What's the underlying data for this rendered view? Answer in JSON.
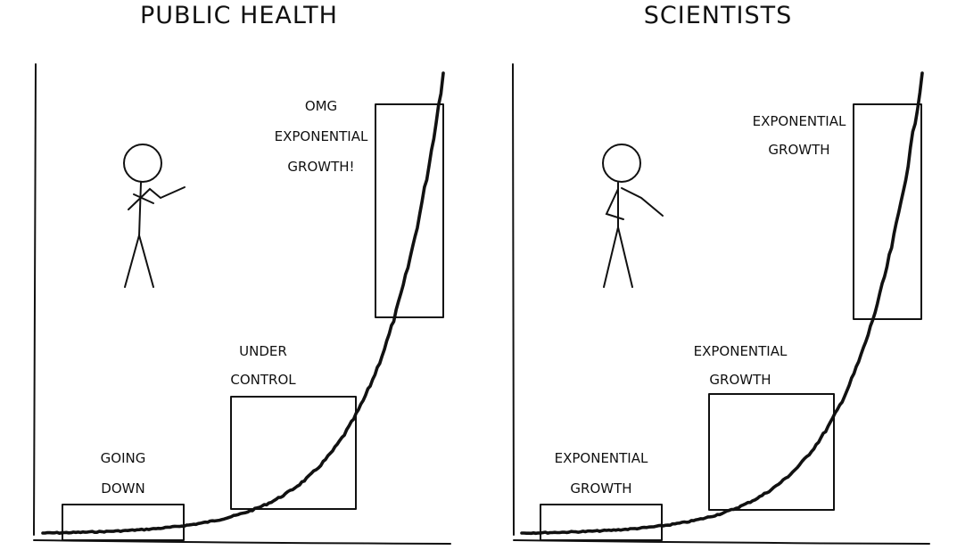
{
  "panels": [
    {
      "title": "PUBLIC HEALTH",
      "labels": {
        "low_line1": "GOING",
        "low_line2": "DOWN",
        "mid_line1": "UNDER",
        "mid_line2": "CONTROL",
        "high_line1": "OMG",
        "high_line2": "EXPONENTIAL",
        "high_line3": "GROWTH!"
      }
    },
    {
      "title": "SCIENTISTS",
      "labels": {
        "low_line1": "EXPONENTIAL",
        "low_line2": "GROWTH",
        "mid_line1": "EXPONENTIAL",
        "mid_line2": "GROWTH",
        "high_line1": "EXPONENTIAL",
        "high_line2": "GROWTH"
      }
    }
  ],
  "colors": {
    "ink": "#111111",
    "background": "#ffffff"
  }
}
